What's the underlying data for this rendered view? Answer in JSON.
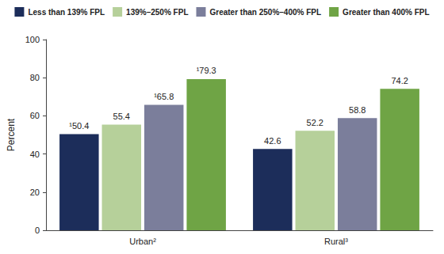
{
  "chart_data": {
    "type": "bar",
    "y_label": "Percent",
    "categories": [
      "Urban²",
      "Rural³"
    ],
    "series": [
      {
        "name": "Less than 139% FPL",
        "color": "#1c2d5a",
        "values": [
          50.4,
          42.6
        ],
        "value_labels": [
          "¹50.4",
          "42.6"
        ]
      },
      {
        "name": "139%–250% FPL",
        "color": "#b6d09a",
        "values": [
          55.4,
          52.2
        ],
        "value_labels": [
          "55.4",
          "52.2"
        ]
      },
      {
        "name": "Greater than 250%–400% FPL",
        "color": "#7b7e9b",
        "values": [
          65.8,
          58.8
        ],
        "value_labels": [
          "¹65.8",
          "58.8"
        ]
      },
      {
        "name": "Greater than 400% FPL",
        "color": "#6fa445",
        "values": [
          79.3,
          74.2
        ],
        "value_labels": [
          "¹79.3",
          "74.2"
        ]
      }
    ],
    "ylim": [
      0,
      100
    ],
    "yticks": [
      0,
      20,
      40,
      60,
      80,
      100
    ],
    "grid": false,
    "legend": "top",
    "data_labels": true
  }
}
